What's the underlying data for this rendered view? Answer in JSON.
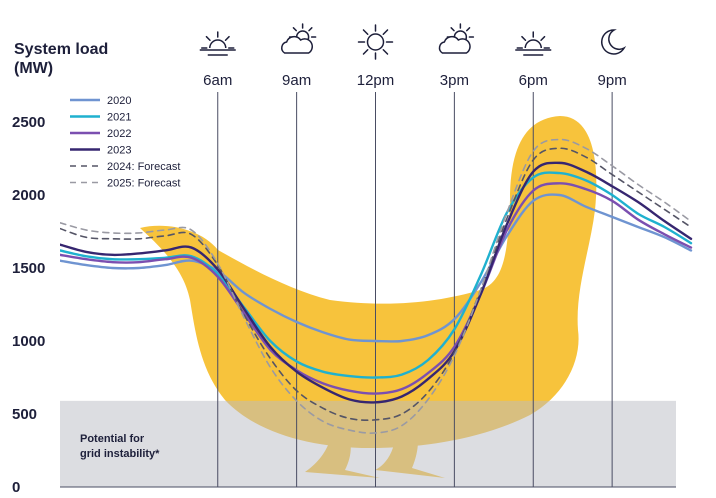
{
  "chart_data": {
    "type": "line",
    "ylabel": "System load\n(MW)",
    "ylim": [
      0,
      2500
    ],
    "yticks": [
      0,
      500,
      1000,
      1500,
      2000,
      2500
    ],
    "x": [
      0,
      1,
      2,
      3,
      4,
      5,
      6,
      7,
      8,
      9,
      10,
      11,
      12,
      13,
      14,
      15,
      16,
      17,
      18,
      19,
      20,
      21,
      22,
      23,
      24
    ],
    "time_markers": [
      {
        "label": "6am",
        "hour": 6,
        "icon": "sunrise-icon"
      },
      {
        "label": "9am",
        "hour": 9,
        "icon": "cloud-sun-icon"
      },
      {
        "label": "12pm",
        "hour": 12,
        "icon": "sun-icon"
      },
      {
        "label": "3pm",
        "hour": 15,
        "icon": "cloud-sun-icon"
      },
      {
        "label": "6pm",
        "hour": 18,
        "icon": "sunset-icon"
      },
      {
        "label": "9pm",
        "hour": 21,
        "icon": "moon-icon"
      }
    ],
    "series": [
      {
        "name": "2020",
        "color": "#6f94d1",
        "dash": false,
        "values": [
          1550,
          1520,
          1500,
          1500,
          1520,
          1550,
          1480,
          1330,
          1220,
          1130,
          1060,
          1010,
          1000,
          1000,
          1040,
          1150,
          1400,
          1720,
          1960,
          2000,
          1920,
          1850,
          1780,
          1710,
          1620
        ]
      },
      {
        "name": "2021",
        "color": "#1fb1cf",
        "dash": false,
        "values": [
          1620,
          1580,
          1560,
          1560,
          1570,
          1580,
          1460,
          1230,
          1000,
          860,
          790,
          760,
          750,
          770,
          870,
          1080,
          1450,
          1880,
          2120,
          2150,
          2100,
          2000,
          1870,
          1780,
          1670
        ]
      },
      {
        "name": "2022",
        "color": "#7b4fb0",
        "dash": false,
        "values": [
          1590,
          1560,
          1540,
          1540,
          1560,
          1570,
          1440,
          1190,
          940,
          800,
          710,
          660,
          640,
          670,
          780,
          960,
          1320,
          1760,
          2030,
          2080,
          2040,
          1960,
          1830,
          1730,
          1640
        ]
      },
      {
        "name": "2023",
        "color": "#362670",
        "dash": false,
        "values": [
          1660,
          1610,
          1590,
          1600,
          1620,
          1640,
          1490,
          1220,
          960,
          790,
          680,
          600,
          580,
          620,
          740,
          930,
          1320,
          1800,
          2160,
          2220,
          2160,
          2060,
          1950,
          1820,
          1700
        ]
      },
      {
        "name": "2024: Forecast",
        "color": "#555566",
        "dash": true,
        "values": [
          1770,
          1710,
          1700,
          1700,
          1720,
          1730,
          1520,
          1180,
          880,
          660,
          540,
          470,
          460,
          500,
          650,
          920,
          1350,
          1840,
          2240,
          2320,
          2260,
          2140,
          2020,
          1900,
          1780
        ]
      },
      {
        "name": "2025: Forecast",
        "color": "#9a9aa3",
        "dash": true,
        "values": [
          1810,
          1760,
          1740,
          1740,
          1760,
          1760,
          1530,
          1160,
          820,
          590,
          450,
          390,
          370,
          420,
          600,
          900,
          1350,
          1880,
          2300,
          2380,
          2320,
          2200,
          2070,
          1950,
          1820
        ]
      }
    ],
    "instability_band": {
      "y_range": [
        0,
        590
      ],
      "label_line1": "Potential for",
      "label_line2": "grid instability*"
    },
    "grid": false,
    "legend": "top-left"
  }
}
